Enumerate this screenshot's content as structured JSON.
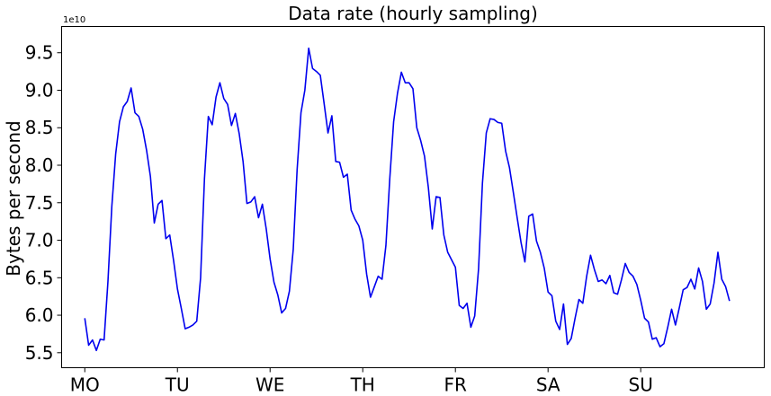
{
  "chart_data": {
    "type": "line",
    "title": "Data rate (hourly sampling)",
    "ylabel": "Bytes per second",
    "y_offset_label": "1e10",
    "ylim": [
      5.3,
      9.85
    ],
    "xlim": [
      -6,
      176
    ],
    "ytick_values": [
      5.5,
      6.0,
      6.5,
      7.0,
      7.5,
      8.0,
      8.5,
      9.0,
      9.5
    ],
    "ytick_labels": [
      "5.5",
      "6.0",
      "6.5",
      "7.0",
      "7.5",
      "8.0",
      "8.5",
      "9.0",
      "9.5"
    ],
    "xtick_values": [
      0,
      24,
      48,
      72,
      96,
      120,
      144
    ],
    "xtick_labels": [
      "MO",
      "TU",
      "WE",
      "TH",
      "FR",
      "SA",
      "SU"
    ],
    "grid": false,
    "color": "#0000ee",
    "series": [
      {
        "values": [
          5.96,
          5.6,
          5.67,
          5.53,
          5.68,
          5.67,
          6.45,
          7.45,
          8.15,
          8.58,
          8.78,
          8.85,
          9.03,
          8.7,
          8.65,
          8.48,
          8.2,
          7.85,
          7.23,
          7.48,
          7.53,
          7.02,
          7.07,
          6.73,
          6.35,
          6.09,
          5.82,
          5.84,
          5.87,
          5.92,
          6.5,
          7.82,
          8.65,
          8.54,
          8.91,
          9.1,
          8.89,
          8.81,
          8.53,
          8.69,
          8.42,
          8.05,
          7.49,
          7.51,
          7.58,
          7.3,
          7.48,
          7.15,
          6.75,
          6.44,
          6.27,
          6.03,
          6.09,
          6.32,
          6.88,
          7.94,
          8.7,
          9.0,
          9.56,
          9.29,
          9.25,
          9.2,
          8.82,
          8.43,
          8.66,
          8.05,
          8.04,
          7.84,
          7.88,
          7.4,
          7.28,
          7.19,
          7.0,
          6.55,
          6.24,
          6.38,
          6.52,
          6.48,
          6.93,
          7.82,
          8.58,
          8.96,
          9.24,
          9.1,
          9.1,
          9.02,
          8.5,
          8.33,
          8.12,
          7.7,
          7.15,
          7.58,
          7.57,
          7.07,
          6.84,
          6.74,
          6.64,
          6.13,
          6.09,
          6.16,
          5.84,
          5.99,
          6.62,
          7.76,
          8.43,
          8.62,
          8.61,
          8.57,
          8.56,
          8.19,
          7.97,
          7.64,
          7.3,
          6.97,
          6.71,
          7.32,
          7.35,
          6.99,
          6.84,
          6.63,
          6.31,
          6.26,
          5.92,
          5.81,
          6.15,
          5.61,
          5.69,
          5.96,
          6.21,
          6.16,
          6.52,
          6.8,
          6.61,
          6.45,
          6.47,
          6.42,
          6.53,
          6.3,
          6.28,
          6.47,
          6.69,
          6.57,
          6.52,
          6.41,
          6.2,
          5.96,
          5.91,
          5.68,
          5.7,
          5.58,
          5.62,
          5.84,
          6.08,
          5.87,
          6.1,
          6.34,
          6.37,
          6.48,
          6.35,
          6.63,
          6.45,
          6.08,
          6.15,
          6.43,
          6.84,
          6.48,
          6.38,
          6.19
        ]
      }
    ]
  }
}
